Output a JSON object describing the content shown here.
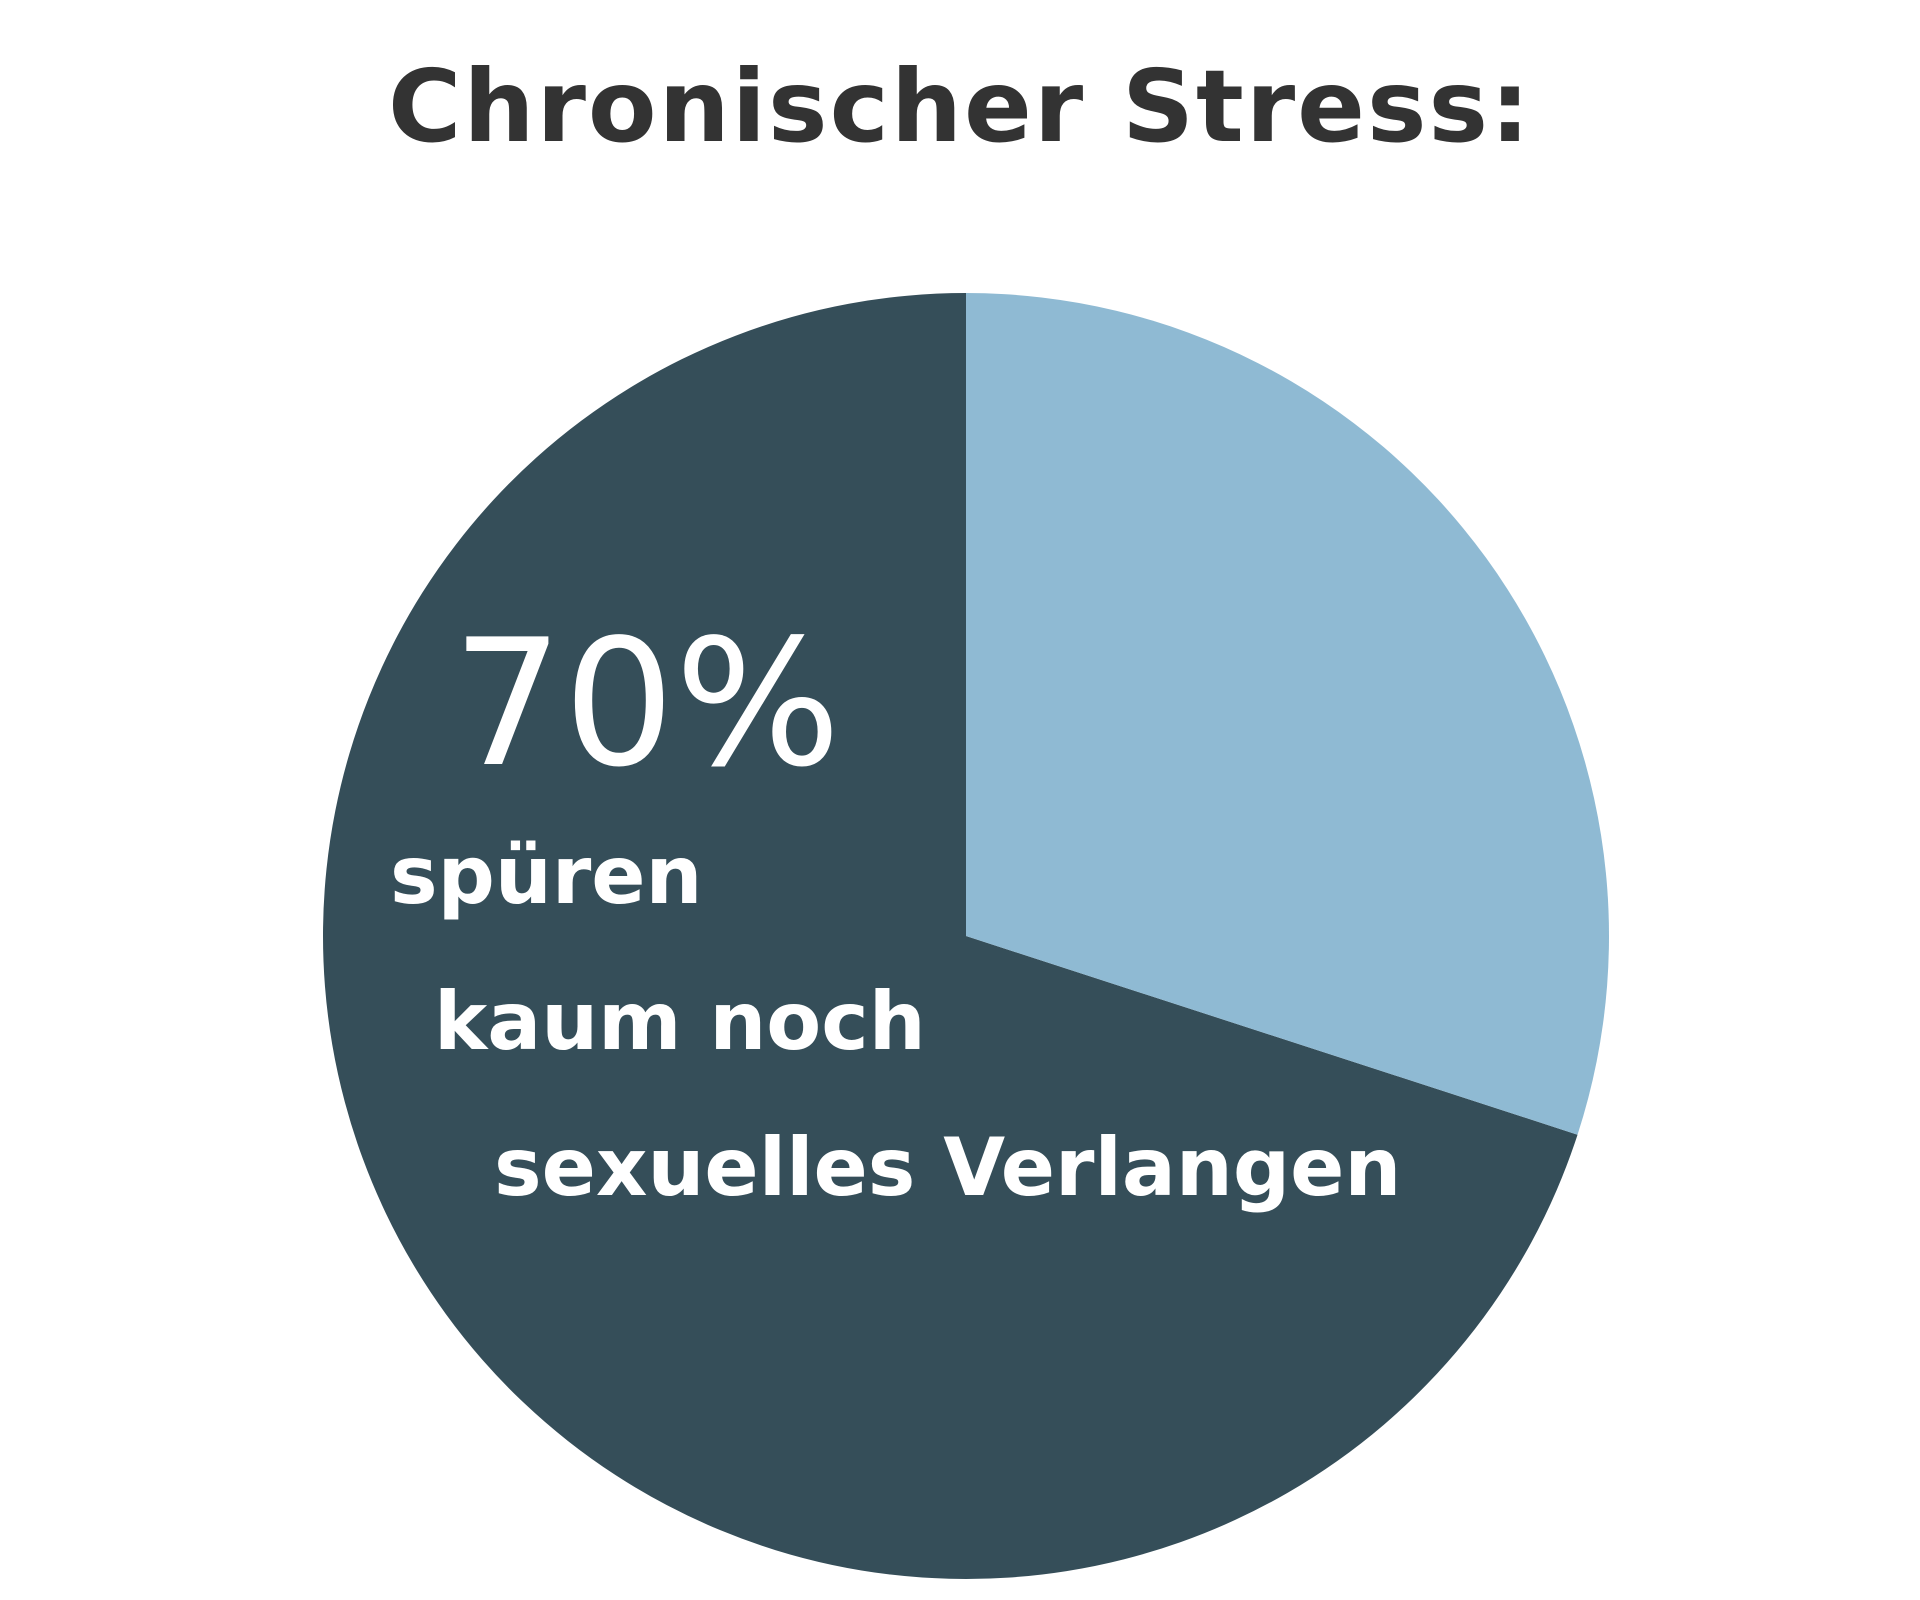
{
  "chart_data": {
    "type": "pie",
    "title": "Chronischer Stress:",
    "start_angle_deg": 18,
    "slices": [
      {
        "value": 70,
        "color": "#354e59",
        "label_value": "70%",
        "label_lines": [
          "spüren",
          "kaum noch",
          "sexuelles Verlangen"
        ]
      },
      {
        "value": 30,
        "color": "#8fbad3"
      }
    ]
  }
}
